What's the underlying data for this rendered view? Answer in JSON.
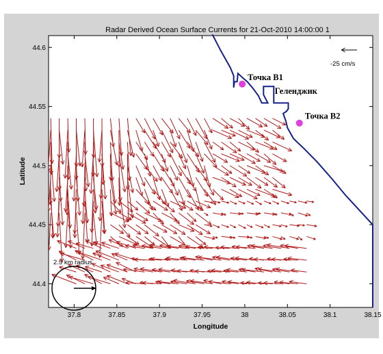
{
  "chart_data": {
    "type": "vector-field",
    "title": "Radar Derived Ocean Surface Currents for 21-Oct-2010 14:00:00 1",
    "xlabel": "Longitude",
    "ylabel": "Latitude",
    "xlim": [
      37.77,
      38.15
    ],
    "ylim": [
      44.38,
      44.61
    ],
    "xticks": [
      "37.8",
      "37.85",
      "37.9",
      "37.95",
      "38",
      "38.05",
      "38.1",
      "38.15"
    ],
    "yticks": [
      "44.6",
      "44.55",
      "44.5",
      "44.45",
      "44.4"
    ],
    "grid": false,
    "arrow_color": "#b01818",
    "coast_color": "#14208a",
    "marker_color": "#e040e0",
    "scale": {
      "label": "-25 cm/s",
      "u": -25,
      "v": 0
    },
    "radius_label": "2.5 km radius",
    "coastline": [
      [
        37.962,
        44.611
      ],
      [
        37.972,
        44.597
      ],
      [
        37.983,
        44.583
      ],
      [
        37.987,
        44.576
      ],
      [
        37.987,
        44.566
      ],
      [
        37.988,
        44.571
      ],
      [
        37.991,
        44.571
      ],
      [
        37.992,
        44.578
      ],
      [
        37.995,
        44.576
      ],
      [
        37.998,
        44.574
      ],
      [
        38.003,
        44.571
      ],
      [
        38.01,
        44.565
      ],
      [
        38.016,
        44.559
      ],
      [
        38.018,
        44.556
      ],
      [
        38.02,
        44.553
      ],
      [
        38.027,
        44.553
      ],
      [
        38.022,
        44.56
      ],
      [
        38.022,
        44.567
      ],
      [
        38.034,
        44.567
      ],
      [
        38.034,
        44.553
      ],
      [
        38.051,
        44.553
      ],
      [
        38.051,
        44.548
      ],
      [
        38.049,
        44.546
      ],
      [
        38.045,
        44.544
      ],
      [
        38.048,
        44.538
      ],
      [
        38.05,
        44.532
      ],
      [
        38.057,
        44.523
      ],
      [
        38.07,
        44.514
      ],
      [
        38.085,
        44.503
      ],
      [
        38.102,
        44.489
      ],
      [
        38.118,
        44.475
      ],
      [
        38.15,
        44.45
      ],
      [
        38.15,
        44.38
      ]
    ],
    "markers": [
      {
        "name": "Точка  B1",
        "lon": 37.997,
        "lat": 44.569
      },
      {
        "name": "Точка B2",
        "lon": 38.064,
        "lat": 44.536
      }
    ],
    "place_labels": [
      {
        "name": "Геленджик",
        "lon": 38.04,
        "lat": 44.562
      }
    ],
    "vectors": {
      "units": "cm/s",
      "lon0": 37.7725,
      "dlon": 0.01,
      "nlon": 31,
      "lat0": 44.4,
      "dlat": 0.01,
      "nlat": 15,
      "comment": "grid of current vectors; u,v in cm/s by zones",
      "zones": [
        {
          "lon": [
            37.77,
            37.835
          ],
          "lat": [
            44.455,
            44.585
          ],
          "u": 0.5,
          "v": -38
        },
        {
          "lon": [
            37.835,
            37.87
          ],
          "lat": [
            44.48,
            44.585
          ],
          "u": 3,
          "v": -32
        },
        {
          "lon": [
            37.87,
            37.96
          ],
          "lat": [
            44.48,
            44.575
          ],
          "u": 9,
          "v": -17
        },
        {
          "lon": [
            37.96,
            38.04
          ],
          "lat": [
            44.48,
            44.545
          ],
          "u": 14,
          "v": -8
        },
        {
          "lon": [
            37.835,
            37.95
          ],
          "lat": [
            44.44,
            44.48
          ],
          "u": 13,
          "v": -9
        },
        {
          "lon": [
            37.95,
            38.09
          ],
          "lat": [
            44.44,
            44.48
          ],
          "u": 7,
          "v": -2
        },
        {
          "lon": [
            37.8,
            37.88
          ],
          "lat": [
            44.395,
            44.44
          ],
          "u": -18,
          "v": 7
        },
        {
          "lon": [
            37.88,
            38.09
          ],
          "lat": [
            44.395,
            44.44
          ],
          "u": -17,
          "v": 2
        },
        {
          "lon": [
            37.83,
            38.09
          ],
          "lat": [
            44.38,
            44.395
          ],
          "u": -11,
          "v": 4
        }
      ]
    }
  }
}
